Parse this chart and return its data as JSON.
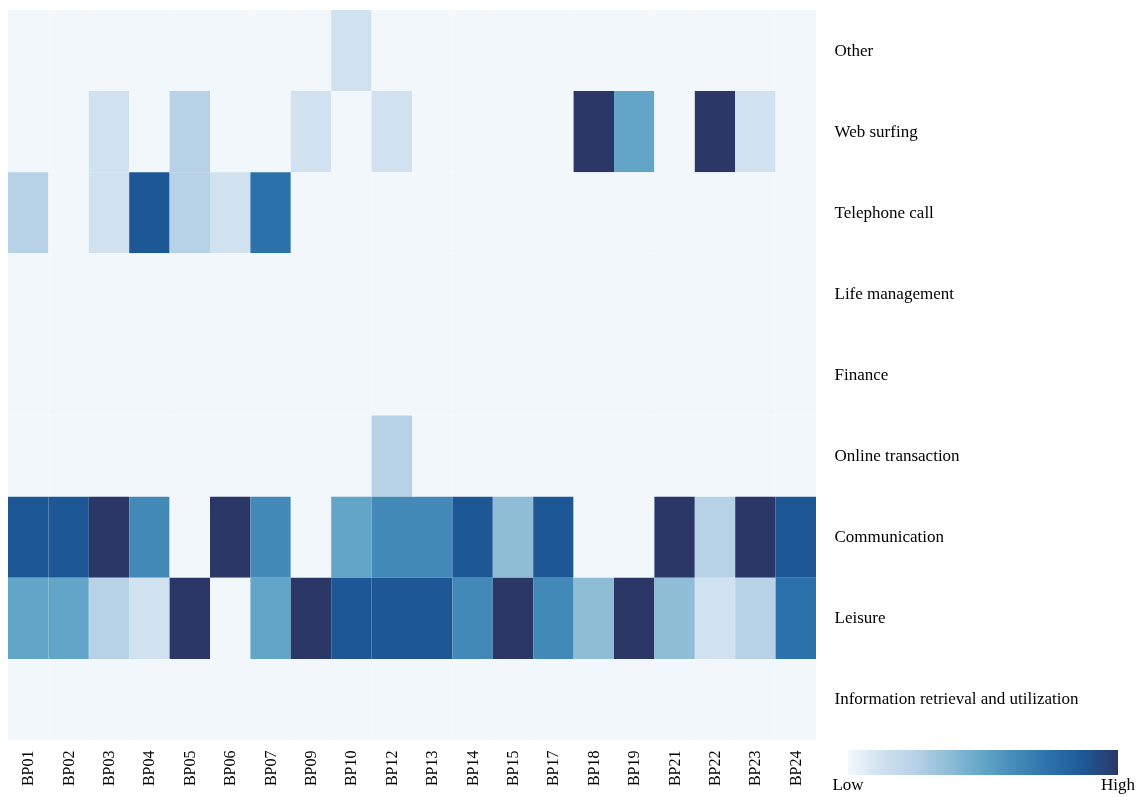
{
  "chart_data": {
    "type": "heatmap",
    "categories": [
      "BP01",
      "BP02",
      "BP03",
      "BP04",
      "BP05",
      "BP06",
      "BP07",
      "BP09",
      "BP10",
      "BP12",
      "BP13",
      "BP14",
      "BP15",
      "BP17",
      "BP18",
      "BP19",
      "BP21",
      "BP22",
      "BP23",
      "BP24"
    ],
    "y_categories": [
      "Other",
      "Web surfing",
      "Telephone call",
      "Life management",
      "Finance",
      "Online transaction",
      "Communication",
      "Leisure",
      "Information retrieval and utilization"
    ],
    "cells": [
      [
        0,
        0,
        0,
        0,
        0,
        0,
        0,
        0,
        1,
        0,
        0,
        0,
        0,
        0,
        0,
        0,
        0,
        0,
        0,
        0
      ],
      [
        0,
        0,
        1,
        0,
        2,
        0,
        0,
        1,
        0,
        1,
        0,
        0,
        0,
        0,
        8,
        4,
        0,
        8,
        1,
        0
      ],
      [
        2,
        0,
        1,
        7,
        2,
        1,
        6,
        0,
        0,
        0,
        0,
        0,
        0,
        0,
        0,
        0,
        0,
        0,
        0,
        0
      ],
      [
        0,
        0,
        0,
        0,
        0,
        0,
        0,
        0,
        0,
        0,
        0,
        0,
        0,
        0,
        0,
        0,
        0,
        0,
        0,
        0
      ],
      [
        0,
        0,
        0,
        0,
        0,
        0,
        0,
        0,
        0,
        0,
        0,
        0,
        0,
        0,
        0,
        0,
        0,
        0,
        0,
        0
      ],
      [
        0,
        0,
        0,
        0,
        0,
        0,
        0,
        0,
        0,
        2,
        0,
        0,
        0,
        0,
        0,
        0,
        0,
        0,
        0,
        0
      ],
      [
        7,
        7,
        8,
        5,
        0,
        8,
        5,
        0,
        4,
        5,
        5,
        7,
        3,
        7,
        0,
        0,
        8,
        2,
        8,
        7
      ],
      [
        4,
        4,
        2,
        1,
        8,
        0,
        4,
        8,
        7,
        7,
        7,
        5,
        8,
        5,
        3,
        8,
        3,
        1,
        2,
        6
      ],
      [
        0,
        0,
        0,
        0,
        0,
        0,
        0,
        0,
        0,
        0,
        0,
        0,
        0,
        0,
        0,
        0,
        0,
        0,
        0,
        0
      ]
    ],
    "clim": [
      0,
      8
    ],
    "cticks": [
      {
        "value": 0,
        "label": "Low"
      },
      {
        "value": 8,
        "label": "High"
      }
    ]
  }
}
